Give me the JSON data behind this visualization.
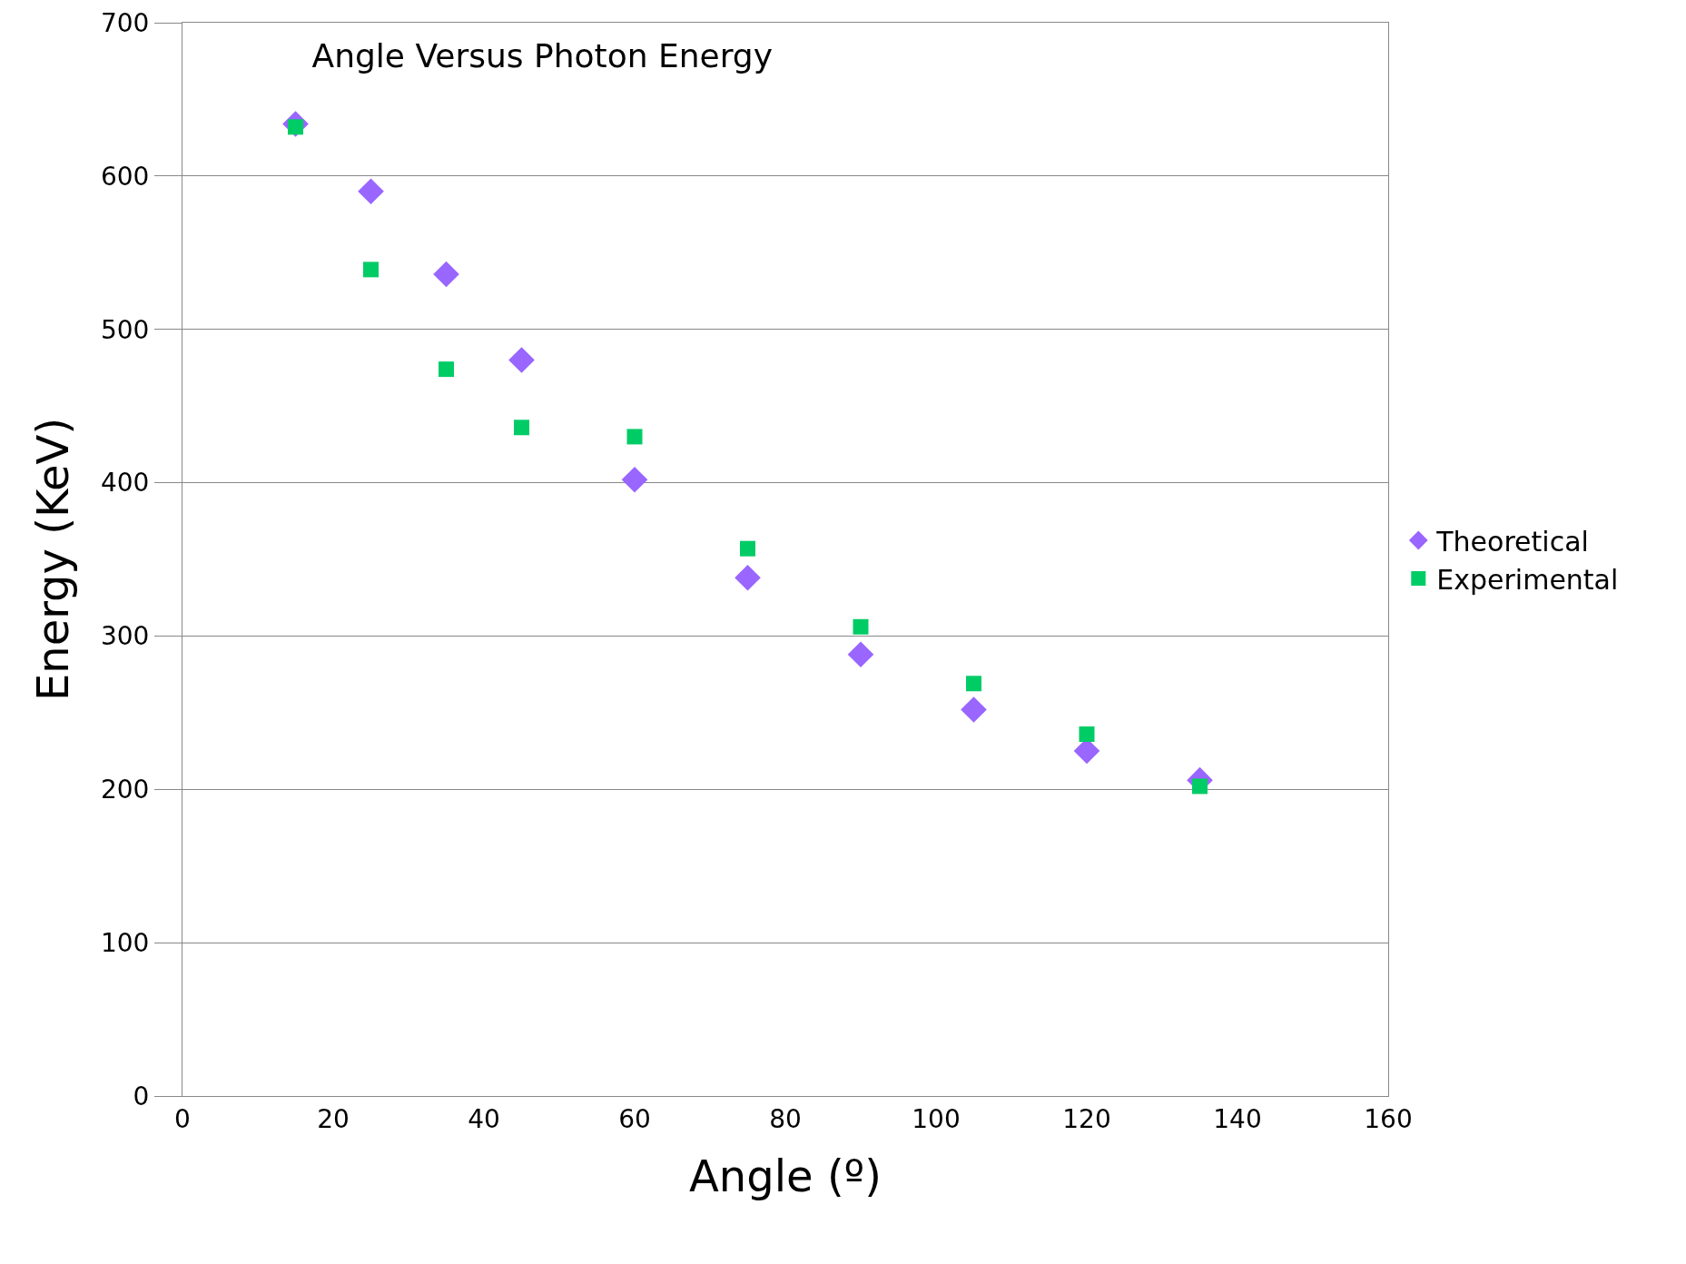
{
  "chart_data": {
    "type": "scatter",
    "title": "Angle Versus Photon Energy",
    "xlabel": "Angle (º)",
    "ylabel": "Energy (KeV)",
    "x": [
      15,
      25,
      35,
      45,
      60,
      75,
      90,
      105,
      120,
      135
    ],
    "series": [
      {
        "name": "Theoretical",
        "color": "#9966ff",
        "marker": "diamond",
        "values": [
          634,
          590,
          536,
          480,
          402,
          338,
          288,
          252,
          225,
          206
        ]
      },
      {
        "name": "Experimental",
        "color": "#00cc66",
        "marker": "square",
        "values": [
          632,
          539,
          474,
          436,
          430,
          357,
          306,
          269,
          236,
          202
        ]
      }
    ],
    "xlim": [
      0,
      160
    ],
    "xticks": [
      0,
      20,
      40,
      60,
      80,
      100,
      120,
      140,
      160
    ],
    "ylim": [
      0,
      700
    ],
    "yticks": [
      0,
      100,
      200,
      300,
      400,
      500,
      600,
      700
    ],
    "grid": "y",
    "legend": "right"
  }
}
